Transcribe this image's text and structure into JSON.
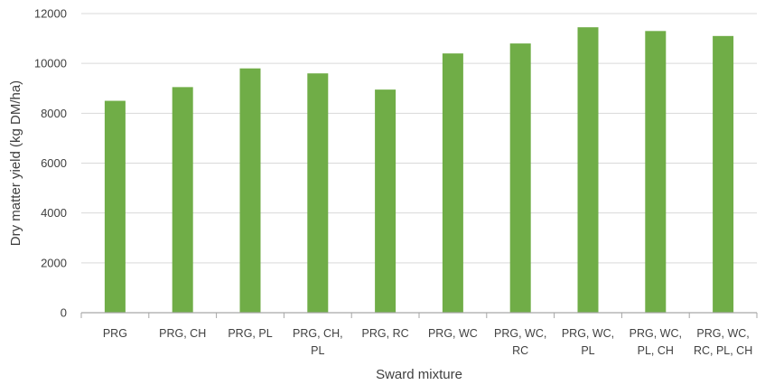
{
  "chart_data": {
    "type": "bar",
    "title": "",
    "xlabel": "Sward mixture",
    "ylabel": "Dry matter yield (kg DM/ha)",
    "ylim": [
      0,
      12000
    ],
    "yticks": [
      0,
      2000,
      4000,
      6000,
      8000,
      10000,
      12000
    ],
    "grid": true,
    "legend": "none",
    "categories": [
      [
        "PRG"
      ],
      [
        "PRG, CH"
      ],
      [
        "PRG, PL"
      ],
      [
        "PRG, CH,",
        "PL"
      ],
      [
        "PRG, RC"
      ],
      [
        "PRG, WC"
      ],
      [
        "PRG, WC,",
        "RC"
      ],
      [
        "PRG, WC,",
        "PL"
      ],
      [
        "PRG, WC,",
        "PL, CH"
      ],
      [
        "PRG, WC,",
        "RC, PL, CH"
      ]
    ],
    "values": [
      8500,
      9050,
      9800,
      9600,
      8950,
      10400,
      10800,
      11450,
      11300,
      11100
    ],
    "colors": {
      "bar": "#70ad47",
      "grid": "#d9d9d9",
      "axis": "#a6a6a6"
    }
  }
}
